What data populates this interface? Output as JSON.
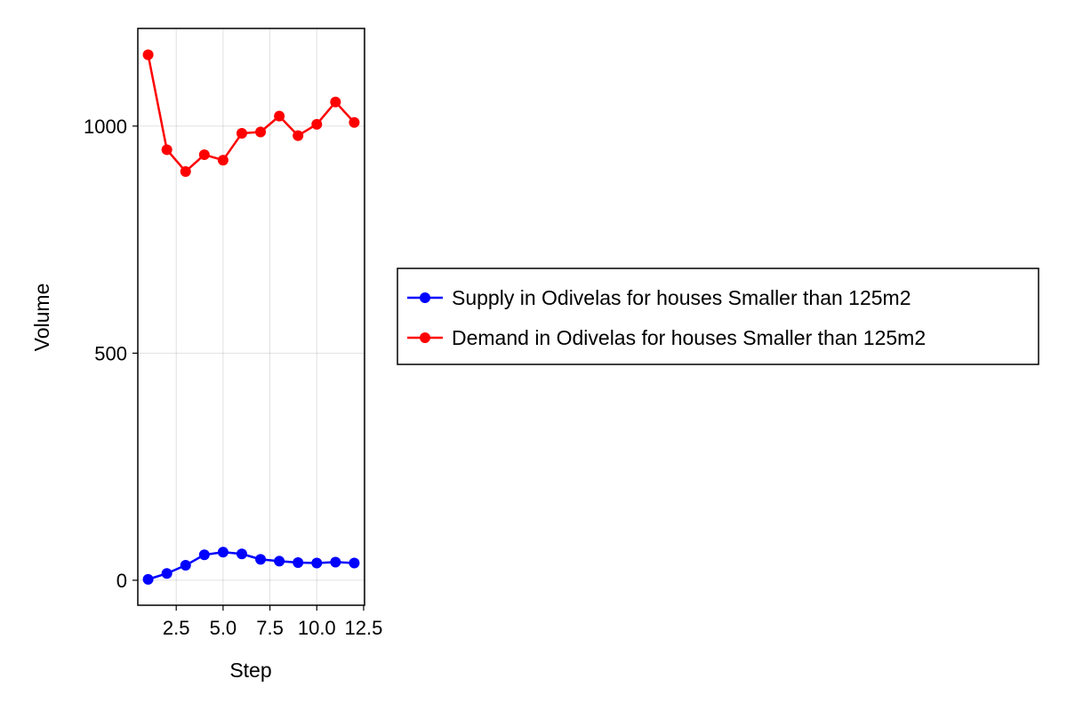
{
  "chart_data": {
    "type": "line",
    "title": "",
    "xlabel": "Step",
    "ylabel": "Volume",
    "xlim": [
      0.45,
      12.55
    ],
    "ylim": [
      -55,
      1215
    ],
    "xticks": [
      2.5,
      5.0,
      7.5,
      10.0,
      12.5
    ],
    "xtick_labels": [
      "2.5",
      "5.0",
      "7.5",
      "10.0",
      "12.5"
    ],
    "yticks": [
      0,
      500,
      1000
    ],
    "ytick_labels": [
      "0",
      "500",
      "1000"
    ],
    "grid": true,
    "legend_position": "right",
    "x": [
      1,
      2,
      3,
      4,
      5,
      6,
      7,
      8,
      9,
      10,
      11,
      12
    ],
    "series": [
      {
        "name": "Supply in Odivelas for houses Smaller than 125m2",
        "color": "#0000ff",
        "values": [
          2,
          15,
          33,
          56,
          62,
          58,
          46,
          42,
          39,
          38,
          40,
          38
        ]
      },
      {
        "name": "Demand in Odivelas for houses Smaller than 125m2",
        "color": "#ff0000",
        "values": [
          1157,
          948,
          900,
          937,
          925,
          984,
          987,
          1022,
          979,
          1004,
          1053,
          1008
        ]
      }
    ]
  }
}
